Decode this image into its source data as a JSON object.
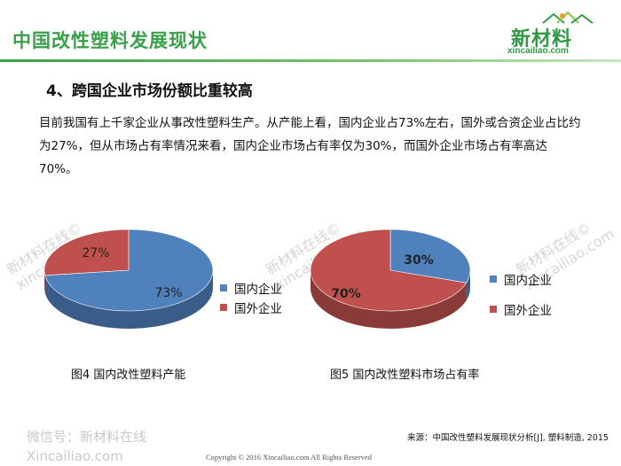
{
  "header": {
    "title": "中国改性塑料发展现状",
    "accent_color": "#3aa04a"
  },
  "logo": {
    "name": "新材料",
    "domain": "xincailiao.com"
  },
  "section": {
    "heading": "4、跨国企业市场份额比重较高",
    "paragraph": "目前我国有上千家企业从事改性塑料生产。从产能上看，国内企业占73%左右，国外或合资企业占比约为27%，但从市场占有率情况来看，国内企业市场占有率仅为30%，而国外企业市场占有率高达70%。"
  },
  "watermarks": [
    {
      "line1": "新材料在线©",
      "line2": "xincailiao.com"
    },
    {
      "line1": "新材料在线©",
      "line2": "xincailiao.com"
    },
    {
      "line1": "新材料在线©",
      "line2": "xincailiao.com"
    }
  ],
  "chart_data": [
    {
      "type": "pie",
      "categories": [
        "国内企业",
        "国外企业"
      ],
      "values": [
        73,
        27
      ],
      "data_labels": [
        "73%",
        "27%"
      ],
      "colors": [
        "#4f81bd",
        "#c0504d"
      ],
      "legend": "right",
      "title": "图4 国内改性塑料产能"
    },
    {
      "type": "pie",
      "categories": [
        "国内企业",
        "国外企业"
      ],
      "values": [
        30,
        70
      ],
      "data_labels": [
        "30%",
        "70%"
      ],
      "colors": [
        "#4f81bd",
        "#c0504d"
      ],
      "legend": "right",
      "title": "图5 国内改性塑料市场占有率"
    }
  ],
  "footer": {
    "wechat_line1": "微信号：新材料在线",
    "wechat_line2": "Xincailiao.com",
    "source": "来源：中国改性塑料发展现状分析[J], 塑料制造, 2015",
    "copyright": "Copyright © 2016  Xincailiao.com  All Rights Reserved"
  }
}
